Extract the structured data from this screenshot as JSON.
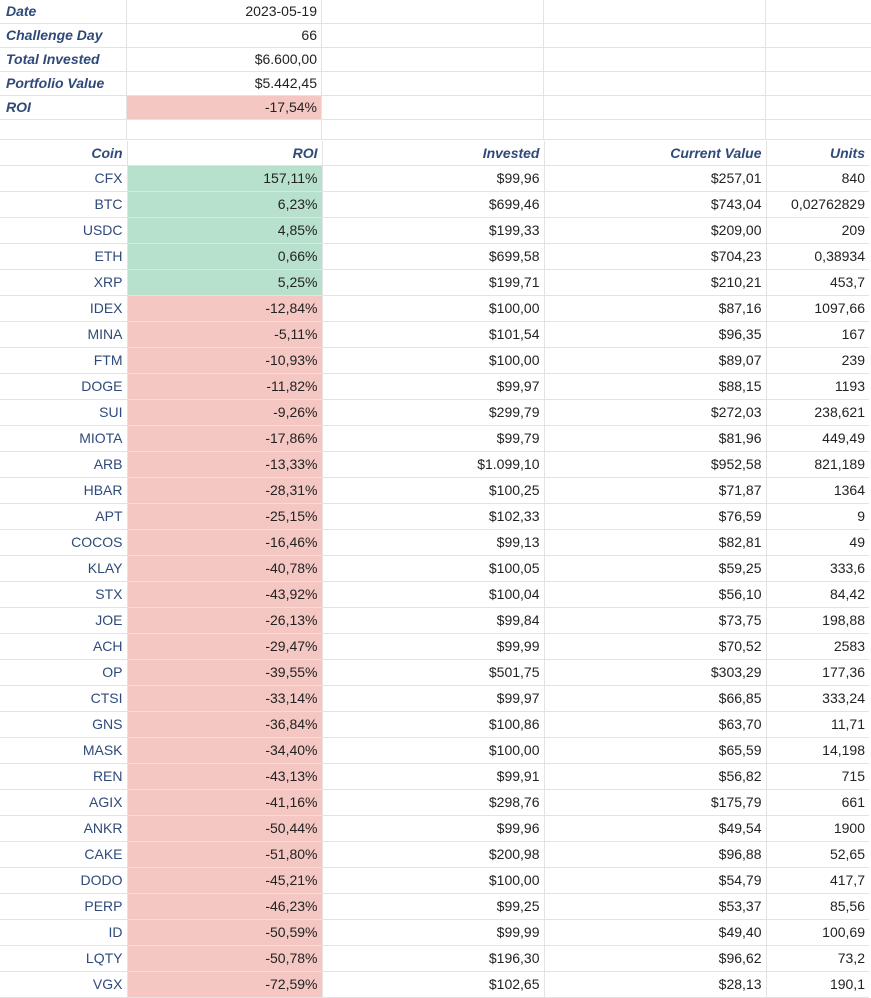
{
  "summary": {
    "date_label": "Date",
    "date_value": "2023-05-19",
    "day_label": "Challenge Day",
    "day_value": "66",
    "invested_label": "Total Invested",
    "invested_value": "$6.600,00",
    "portfolio_label": "Portfolio Value",
    "portfolio_value": "$5.442,45",
    "roi_label": "ROI",
    "roi_value": "-17,54%"
  },
  "colors": {
    "negative": "#f4c7c3",
    "positive": "#b7e1cd",
    "header_text": "#2f4a7a"
  },
  "table": {
    "headers": [
      "Coin",
      "ROI",
      "Invested",
      "Current Value",
      "Units"
    ],
    "rows": [
      {
        "coin": "CFX",
        "roi": "157,11%",
        "invested": "$99,96",
        "current": "$257,01",
        "units": "840",
        "status": "positive"
      },
      {
        "coin": "BTC",
        "roi": "6,23%",
        "invested": "$699,46",
        "current": "$743,04",
        "units": "0,02762829",
        "status": "positive"
      },
      {
        "coin": "USDC",
        "roi": "4,85%",
        "invested": "$199,33",
        "current": "$209,00",
        "units": "209",
        "status": "positive"
      },
      {
        "coin": "ETH",
        "roi": "0,66%",
        "invested": "$699,58",
        "current": "$704,23",
        "units": "0,38934",
        "status": "positive"
      },
      {
        "coin": "XRP",
        "roi": "5,25%",
        "invested": "$199,71",
        "current": "$210,21",
        "units": "453,7",
        "status": "positive"
      },
      {
        "coin": "IDEX",
        "roi": "-12,84%",
        "invested": "$100,00",
        "current": "$87,16",
        "units": "1097,66",
        "status": "negative"
      },
      {
        "coin": "MINA",
        "roi": "-5,11%",
        "invested": "$101,54",
        "current": "$96,35",
        "units": "167",
        "status": "negative"
      },
      {
        "coin": "FTM",
        "roi": "-10,93%",
        "invested": "$100,00",
        "current": "$89,07",
        "units": "239",
        "status": "negative"
      },
      {
        "coin": "DOGE",
        "roi": "-11,82%",
        "invested": "$99,97",
        "current": "$88,15",
        "units": "1193",
        "status": "negative"
      },
      {
        "coin": "SUI",
        "roi": "-9,26%",
        "invested": "$299,79",
        "current": "$272,03",
        "units": "238,621",
        "status": "negative"
      },
      {
        "coin": "MIOTA",
        "roi": "-17,86%",
        "invested": "$99,79",
        "current": "$81,96",
        "units": "449,49",
        "status": "negative"
      },
      {
        "coin": "ARB",
        "roi": "-13,33%",
        "invested": "$1.099,10",
        "current": "$952,58",
        "units": "821,189",
        "status": "negative"
      },
      {
        "coin": "HBAR",
        "roi": "-28,31%",
        "invested": "$100,25",
        "current": "$71,87",
        "units": "1364",
        "status": "negative"
      },
      {
        "coin": "APT",
        "roi": "-25,15%",
        "invested": "$102,33",
        "current": "$76,59",
        "units": "9",
        "status": "negative"
      },
      {
        "coin": "COCOS",
        "roi": "-16,46%",
        "invested": "$99,13",
        "current": "$82,81",
        "units": "49",
        "status": "negative"
      },
      {
        "coin": "KLAY",
        "roi": "-40,78%",
        "invested": "$100,05",
        "current": "$59,25",
        "units": "333,6",
        "status": "negative"
      },
      {
        "coin": "STX",
        "roi": "-43,92%",
        "invested": "$100,04",
        "current": "$56,10",
        "units": "84,42",
        "status": "negative"
      },
      {
        "coin": "JOE",
        "roi": "-26,13%",
        "invested": "$99,84",
        "current": "$73,75",
        "units": "198,88",
        "status": "negative"
      },
      {
        "coin": "ACH",
        "roi": "-29,47%",
        "invested": "$99,99",
        "current": "$70,52",
        "units": "2583",
        "status": "negative"
      },
      {
        "coin": "OP",
        "roi": "-39,55%",
        "invested": "$501,75",
        "current": "$303,29",
        "units": "177,36",
        "status": "negative"
      },
      {
        "coin": "CTSI",
        "roi": "-33,14%",
        "invested": "$99,97",
        "current": "$66,85",
        "units": "333,24",
        "status": "negative"
      },
      {
        "coin": "GNS",
        "roi": "-36,84%",
        "invested": "$100,86",
        "current": "$63,70",
        "units": "11,71",
        "status": "negative"
      },
      {
        "coin": "MASK",
        "roi": "-34,40%",
        "invested": "$100,00",
        "current": "$65,59",
        "units": "14,198",
        "status": "negative"
      },
      {
        "coin": "REN",
        "roi": "-43,13%",
        "invested": "$99,91",
        "current": "$56,82",
        "units": "715",
        "status": "negative"
      },
      {
        "coin": "AGIX",
        "roi": "-41,16%",
        "invested": "$298,76",
        "current": "$175,79",
        "units": "661",
        "status": "negative"
      },
      {
        "coin": "ANKR",
        "roi": "-50,44%",
        "invested": "$99,96",
        "current": "$49,54",
        "units": "1900",
        "status": "negative"
      },
      {
        "coin": "CAKE",
        "roi": "-51,80%",
        "invested": "$200,98",
        "current": "$96,88",
        "units": "52,65",
        "status": "negative"
      },
      {
        "coin": "DODO",
        "roi": "-45,21%",
        "invested": "$100,00",
        "current": "$54,79",
        "units": "417,7",
        "status": "negative"
      },
      {
        "coin": "PERP",
        "roi": "-46,23%",
        "invested": "$99,25",
        "current": "$53,37",
        "units": "85,56",
        "status": "negative"
      },
      {
        "coin": "ID",
        "roi": "-50,59%",
        "invested": "$99,99",
        "current": "$49,40",
        "units": "100,69",
        "status": "negative"
      },
      {
        "coin": "LQTY",
        "roi": "-50,78%",
        "invested": "$196,30",
        "current": "$96,62",
        "units": "73,2",
        "status": "negative"
      },
      {
        "coin": "VGX",
        "roi": "-72,59%",
        "invested": "$102,65",
        "current": "$28,13",
        "units": "190,1",
        "status": "negative"
      }
    ]
  }
}
